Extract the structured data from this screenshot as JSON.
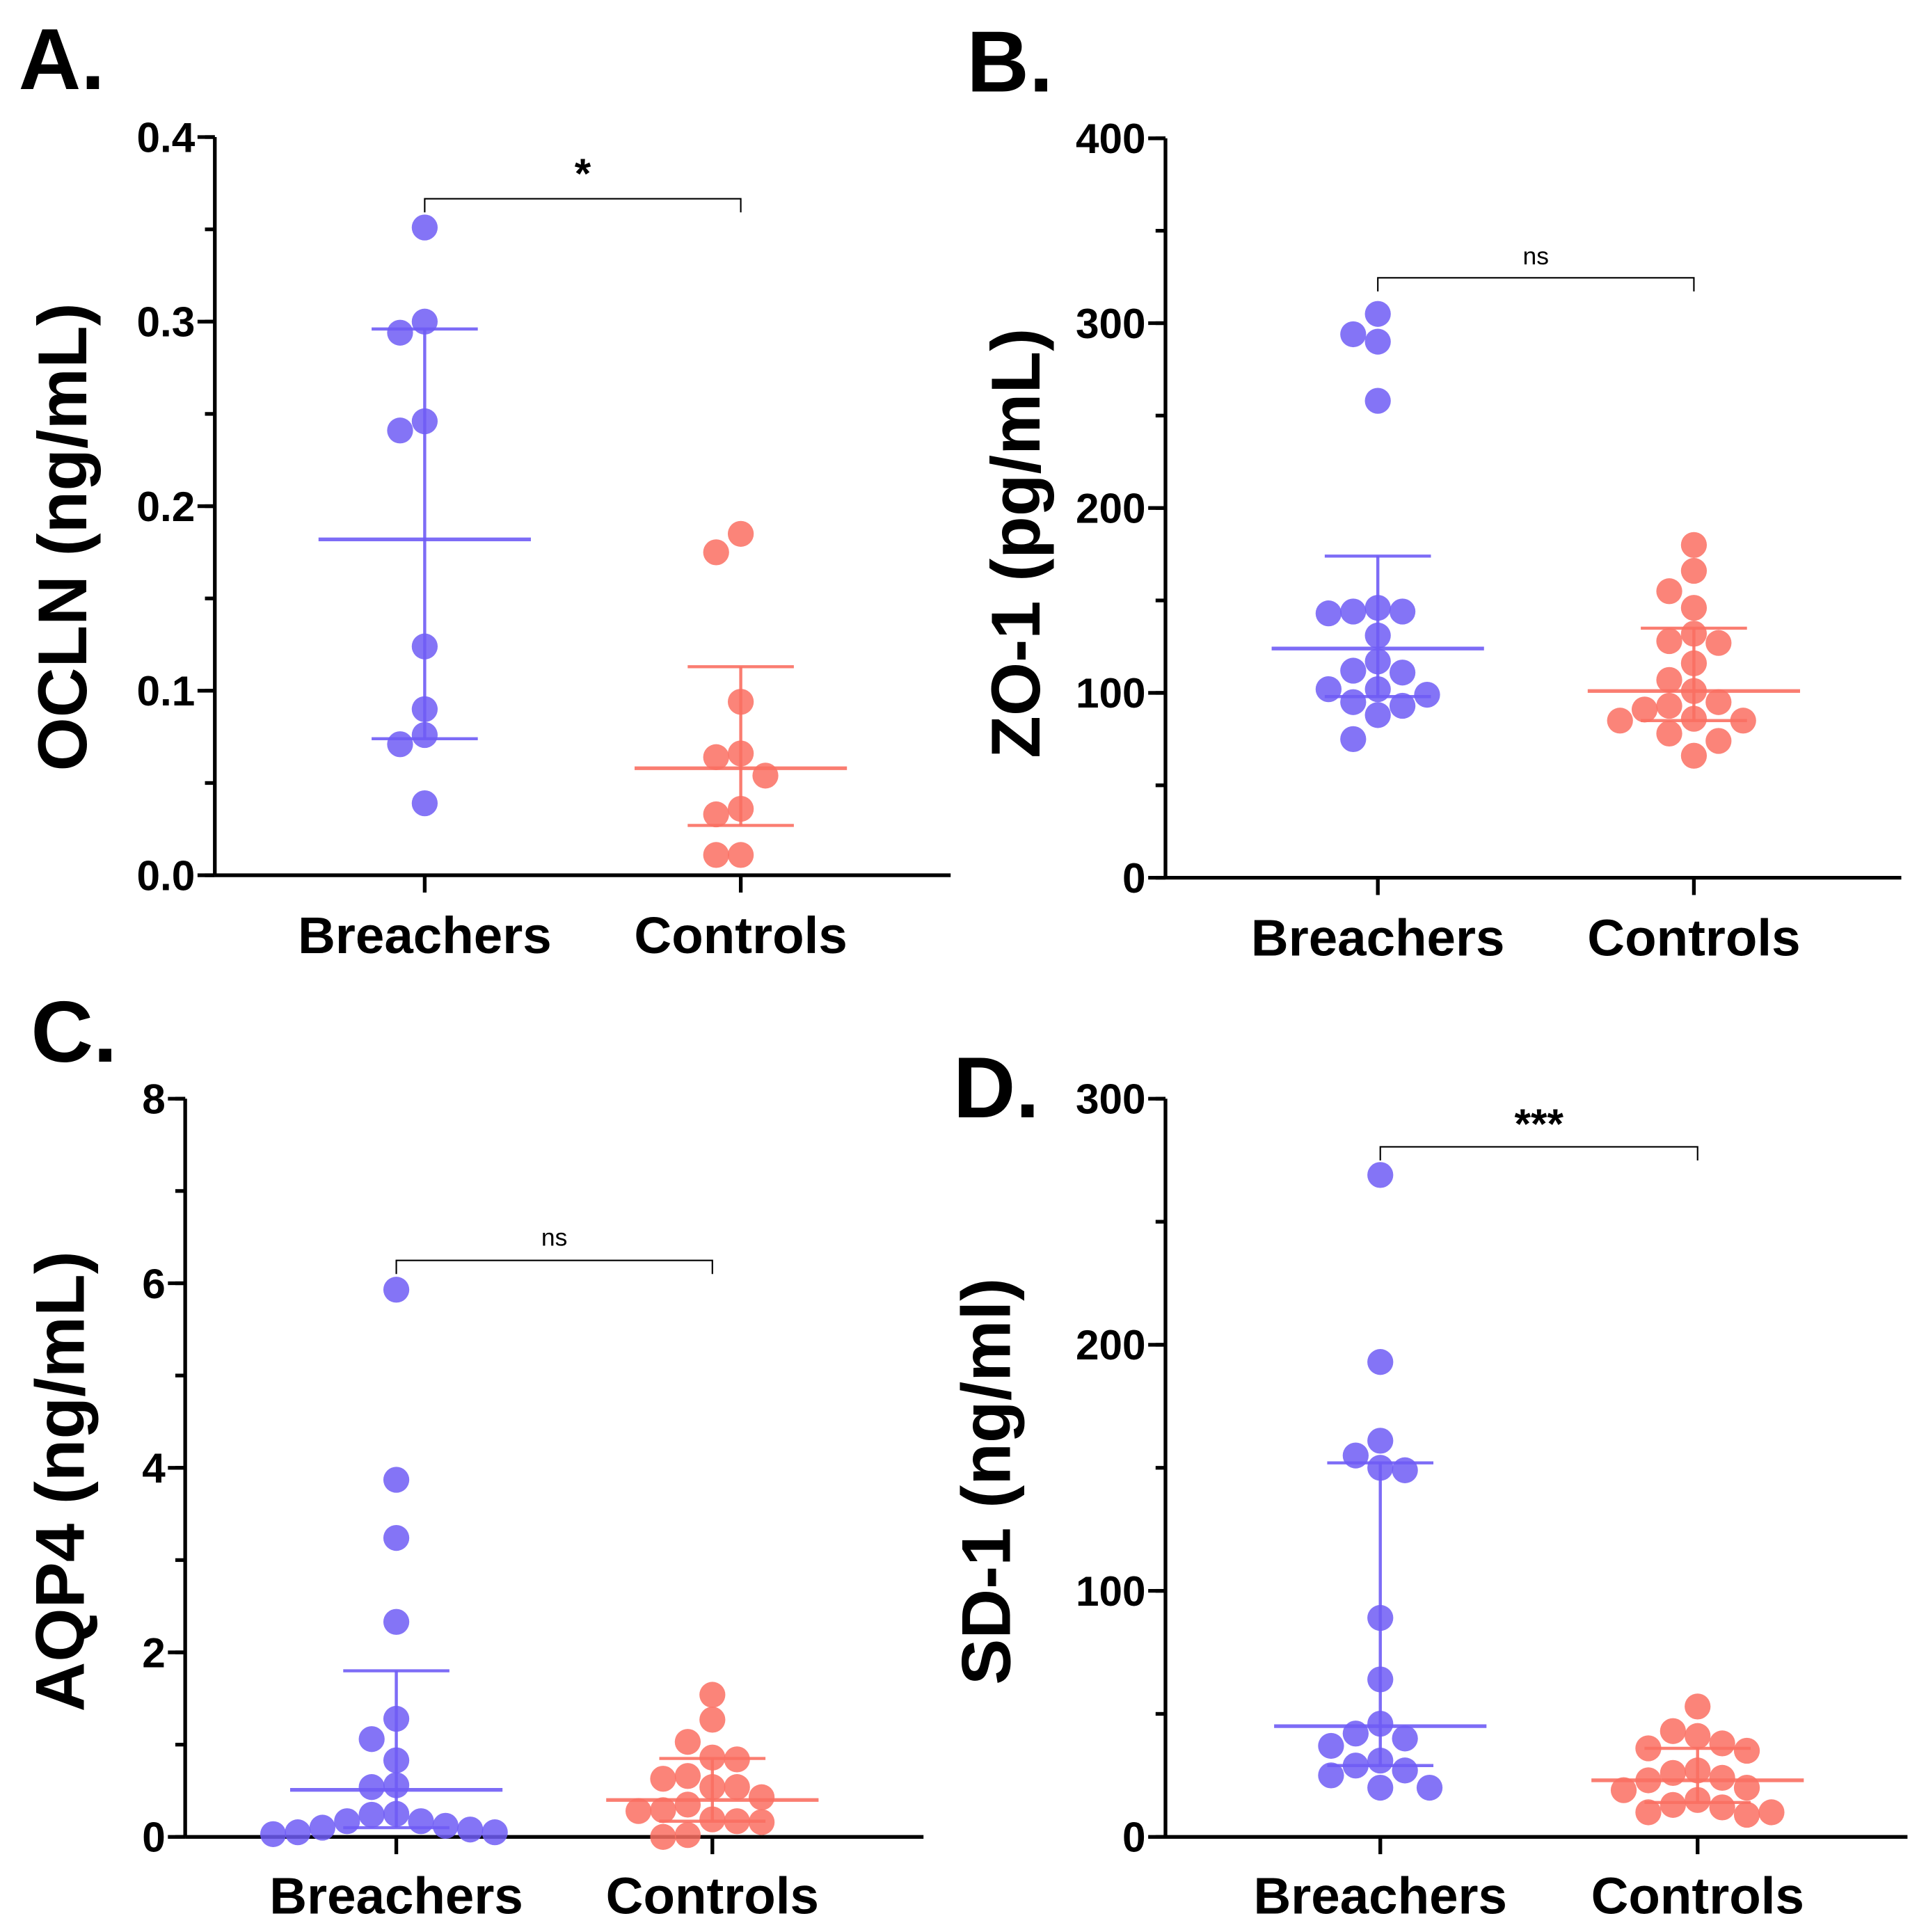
{
  "colors": {
    "breachers": "#6f5cf5",
    "controls": "#fa6f62",
    "axis": "#000000"
  },
  "chart_data": [
    {
      "type": "scatter",
      "panel_label": "A.",
      "ylabel": "OCLN (ng/mL)",
      "ylim": [
        0,
        0.4
      ],
      "yticks": [
        "0.0",
        "0.1",
        "0.2",
        "0.3",
        "0.4"
      ],
      "ytick_values": [
        0,
        0.1,
        0.2,
        0.3,
        0.4
      ],
      "minor_step": 0.05,
      "categories": [
        "Breachers",
        "Controls"
      ],
      "series": [
        {
          "name": "Breachers",
          "values": [
            0.351,
            0.3,
            0.294,
            0.246,
            0.241,
            0.124,
            0.09,
            0.076,
            0.071,
            0.039
          ],
          "center": 0.182,
          "err_low": 0.074,
          "err_high": 0.296
        },
        {
          "name": "Controls",
          "values": [
            0.185,
            0.175,
            0.094,
            0.066,
            0.064,
            0.054,
            0.036,
            0.033,
            0.011,
            0.011
          ],
          "center": 0.058,
          "err_low": 0.027,
          "err_high": 0.113
        }
      ],
      "significance": "*"
    },
    {
      "type": "scatter",
      "panel_label": "B.",
      "ylabel": "ZO-1 (pg/mL)",
      "ylim": [
        0,
        400
      ],
      "yticks": [
        "0",
        "100",
        "200",
        "300",
        "400"
      ],
      "ytick_values": [
        0,
        100,
        200,
        300,
        400
      ],
      "minor_step": 50,
      "categories": [
        "Breachers",
        "Controls"
      ],
      "series": [
        {
          "name": "Breachers",
          "values": [
            305,
            294,
            290,
            258,
            146,
            144,
            144,
            143,
            131,
            117,
            112,
            111,
            102,
            102,
            99,
            95,
            93,
            88,
            75
          ],
          "center": 124,
          "err_low": 98,
          "err_high": 174
        },
        {
          "name": "Controls",
          "values": [
            180,
            166,
            155,
            146,
            132,
            128,
            127,
            116,
            107,
            101,
            95,
            93,
            91,
            86,
            85,
            85,
            78,
            74,
            66
          ],
          "center": 101,
          "err_low": 85,
          "err_high": 135
        }
      ],
      "significance": "ns"
    },
    {
      "type": "scatter",
      "panel_label": "C.",
      "ylabel": "AQP4 (ng/mL)",
      "ylim": [
        0,
        8
      ],
      "yticks": [
        "0",
        "2",
        "4",
        "6",
        "8"
      ],
      "ytick_values": [
        0,
        2,
        4,
        6,
        8
      ],
      "minor_step": 1,
      "categories": [
        "Breachers",
        "Controls"
      ],
      "series": [
        {
          "name": "Breachers",
          "values": [
            5.93,
            3.87,
            3.24,
            2.33,
            1.28,
            1.06,
            0.83,
            0.56,
            0.54,
            0.25,
            0.24,
            0.17,
            0.17,
            0.12,
            0.1,
            0.08,
            0.05,
            0.05,
            0.03
          ],
          "center": 0.51,
          "err_low": 0.1,
          "err_high": 1.8
        },
        {
          "name": "Controls",
          "values": [
            1.54,
            1.27,
            1.03,
            0.86,
            0.84,
            0.66,
            0.63,
            0.54,
            0.54,
            0.43,
            0.35,
            0.29,
            0.28,
            0.19,
            0.17,
            0.16,
            0.02,
            0.0
          ],
          "center": 0.4,
          "err_low": 0.17,
          "err_high": 0.85
        }
      ],
      "significance": "ns"
    },
    {
      "type": "scatter",
      "panel_label": "D.",
      "ylabel": "SD-1 (ng/ml)",
      "ylim": [
        0,
        300
      ],
      "yticks": [
        "0",
        "100",
        "200",
        "300"
      ],
      "ytick_values": [
        0,
        100,
        200,
        300
      ],
      "minor_step": 50,
      "categories": [
        "Breachers",
        "Controls"
      ],
      "series": [
        {
          "name": "Breachers",
          "values": [
            269,
            193,
            161,
            155,
            150,
            149,
            89,
            64,
            46,
            42,
            40,
            37,
            31,
            29,
            27,
            25,
            20,
            20
          ],
          "center": 45,
          "err_low": 29,
          "err_high": 152
        },
        {
          "name": "Controls",
          "values": [
            53,
            43,
            41,
            38,
            36,
            35,
            27,
            26,
            24,
            23,
            20,
            19,
            15,
            13,
            12,
            10,
            10,
            9
          ],
          "center": 23,
          "err_low": 14,
          "err_high": 36
        }
      ],
      "significance": "***"
    }
  ]
}
